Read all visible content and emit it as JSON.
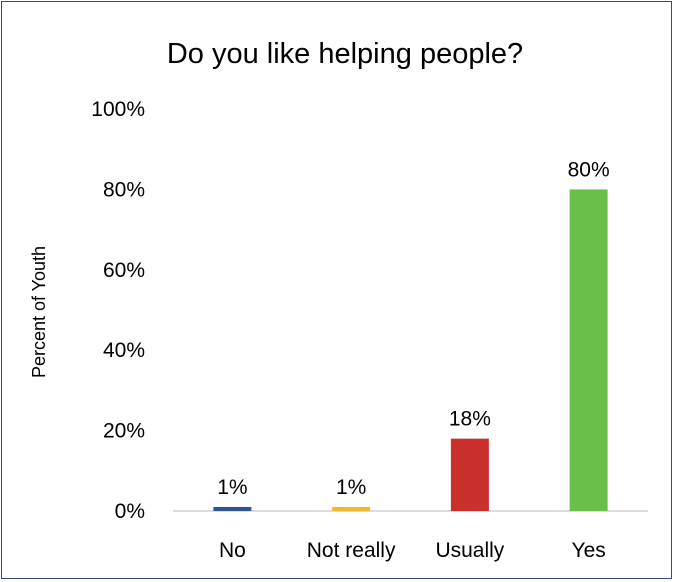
{
  "chart_data": {
    "type": "bar",
    "title": "Do you like helping people?",
    "ylabel": "Percent of Youth",
    "xlabel": "",
    "categories": [
      "No",
      "Not really",
      "Usually",
      "Yes"
    ],
    "values": [
      1,
      1,
      18,
      80
    ],
    "data_labels": [
      "1%",
      "1%",
      "18%",
      "80%"
    ],
    "colors": [
      "#2e5597",
      "#f5b731",
      "#c9302c",
      "#6abf4b"
    ],
    "ylim": [
      0,
      100
    ],
    "yticks": [
      0,
      20,
      40,
      60,
      80,
      100
    ],
    "ytick_labels": [
      "0%",
      "20%",
      "40%",
      "60%",
      "80%",
      "100%"
    ],
    "grid": false,
    "legend": "none"
  }
}
